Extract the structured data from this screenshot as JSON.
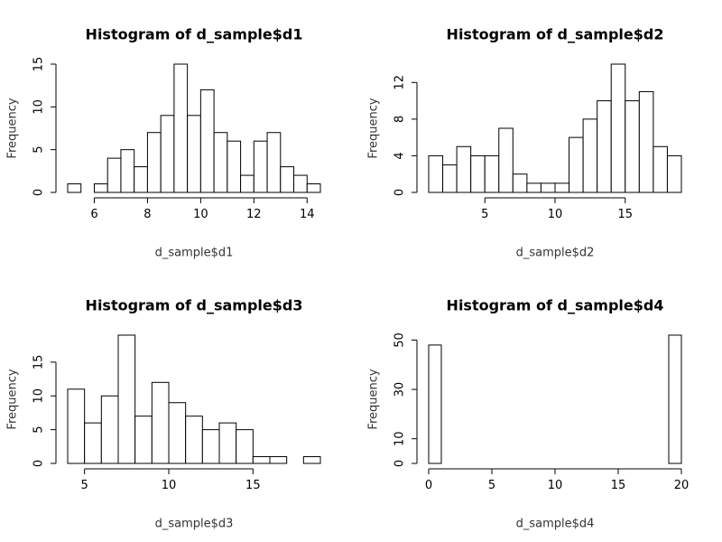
{
  "chart_data": [
    {
      "type": "bar",
      "title": "Histogram of d_sample$d1",
      "xlabel": "d_sample$d1",
      "ylabel": "Frequency",
      "bin_edges": [
        5,
        5.5,
        6,
        6.5,
        7,
        7.5,
        8,
        8.5,
        9,
        9.5,
        10,
        10.5,
        11,
        11.5,
        12,
        12.5,
        13,
        13.5,
        14,
        14.5
      ],
      "values": [
        1,
        0,
        1,
        4,
        5,
        3,
        7,
        9,
        15,
        9,
        12,
        7,
        6,
        2,
        6,
        7,
        3,
        2,
        1
      ],
      "xticks": [
        6,
        8,
        10,
        12,
        14
      ],
      "yticks": [
        0,
        5,
        10,
        15
      ],
      "xlim": [
        5,
        14.5
      ],
      "ylim": [
        0,
        15
      ]
    },
    {
      "type": "bar",
      "title": "Histogram of d_sample$d2",
      "xlabel": "d_sample$d2",
      "ylabel": "Frequency",
      "bin_edges": [
        1,
        2,
        3,
        4,
        5,
        6,
        7,
        8,
        9,
        10,
        11,
        12,
        13,
        14,
        15,
        16,
        17,
        18,
        19
      ],
      "values": [
        4,
        3,
        5,
        4,
        4,
        7,
        2,
        1,
        1,
        1,
        6,
        8,
        10,
        14,
        10,
        11,
        5,
        4
      ],
      "xticks": [
        5,
        10,
        15
      ],
      "yticks": [
        0,
        4,
        8,
        12
      ],
      "xlim": [
        1,
        19
      ],
      "ylim": [
        0,
        14
      ]
    },
    {
      "type": "bar",
      "title": "Histogram of d_sample$d3",
      "xlabel": "d_sample$d3",
      "ylabel": "Frequency",
      "bin_edges": [
        4,
        5,
        6,
        7,
        8,
        9,
        10,
        11,
        12,
        13,
        14,
        15,
        16,
        17,
        18,
        19
      ],
      "values": [
        11,
        6,
        10,
        19,
        7,
        12,
        9,
        7,
        5,
        6,
        5,
        1,
        1,
        0,
        1
      ],
      "xticks": [
        5,
        10,
        15
      ],
      "yticks": [
        0,
        5,
        10,
        15
      ],
      "xlim": [
        4,
        19
      ],
      "ylim": [
        0,
        19
      ]
    },
    {
      "type": "bar",
      "title": "Histogram of d_sample$d4",
      "xlabel": "d_sample$d4",
      "ylabel": "Frequency",
      "bin_edges": [
        0,
        1,
        2,
        3,
        4,
        5,
        6,
        7,
        8,
        9,
        10,
        11,
        12,
        13,
        14,
        15,
        16,
        17,
        18,
        19,
        20
      ],
      "values": [
        48,
        0,
        0,
        0,
        0,
        0,
        0,
        0,
        0,
        0,
        0,
        0,
        0,
        0,
        0,
        0,
        0,
        0,
        0,
        52
      ],
      "xticks": [
        0,
        5,
        10,
        15,
        20
      ],
      "yticks": [
        0,
        10,
        30,
        50
      ],
      "xlim": [
        0,
        20
      ],
      "ylim": [
        0,
        52
      ]
    }
  ]
}
